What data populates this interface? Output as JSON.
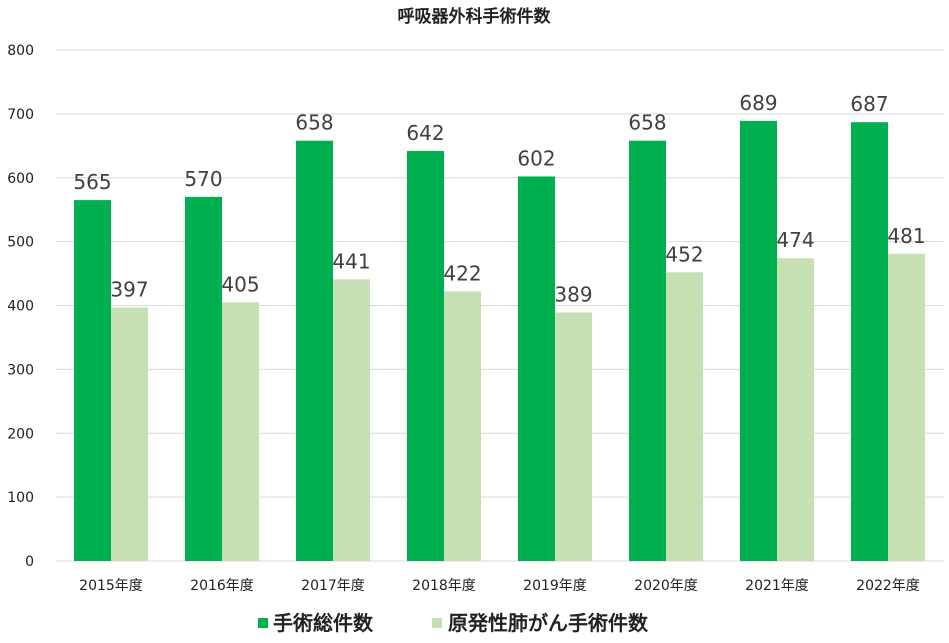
{
  "chart_data": {
    "type": "bar",
    "title": "呼吸器外科手術件数",
    "categories": [
      "2015年度",
      "2016年度",
      "2017年度",
      "2018年度",
      "2019年度",
      "2020年度",
      "2021年度",
      "2022年度"
    ],
    "series": [
      {
        "name": "手術総件数",
        "color": "#00b050",
        "values": [
          565,
          570,
          658,
          642,
          602,
          658,
          689,
          687
        ]
      },
      {
        "name": "原発性肺がん手術件数",
        "color": "#c6e0b4",
        "values": [
          397,
          405,
          441,
          422,
          389,
          452,
          474,
          481
        ]
      }
    ],
    "ylim": [
      0,
      800
    ],
    "yticks": [
      0,
      100,
      200,
      300,
      400,
      500,
      600,
      700,
      800
    ],
    "grid": true,
    "legend": "bottom",
    "data_labels": true
  }
}
